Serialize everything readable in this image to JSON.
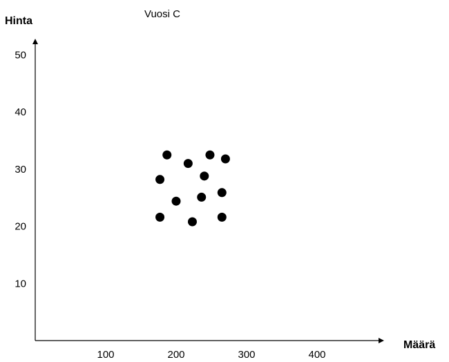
{
  "chart_data": {
    "type": "scatter",
    "title": "Vuosi C",
    "xlabel": "Määrä",
    "ylabel": "Hinta",
    "x_ticks": [
      100,
      200,
      300,
      400
    ],
    "y_ticks": [
      10,
      20,
      30,
      40,
      50
    ],
    "xlim": [
      0,
      460
    ],
    "ylim": [
      0,
      52
    ],
    "grid": false,
    "legend": "none",
    "marker_color": "#000000",
    "points": [
      {
        "x": 187,
        "y": 32.5
      },
      {
        "x": 248,
        "y": 32.5
      },
      {
        "x": 217,
        "y": 31.0
      },
      {
        "x": 270,
        "y": 31.8
      },
      {
        "x": 240,
        "y": 28.8
      },
      {
        "x": 177,
        "y": 28.2
      },
      {
        "x": 265,
        "y": 25.9
      },
      {
        "x": 236,
        "y": 25.1
      },
      {
        "x": 200,
        "y": 24.4
      },
      {
        "x": 177,
        "y": 21.6
      },
      {
        "x": 265,
        "y": 21.6
      },
      {
        "x": 223,
        "y": 20.8
      }
    ]
  }
}
